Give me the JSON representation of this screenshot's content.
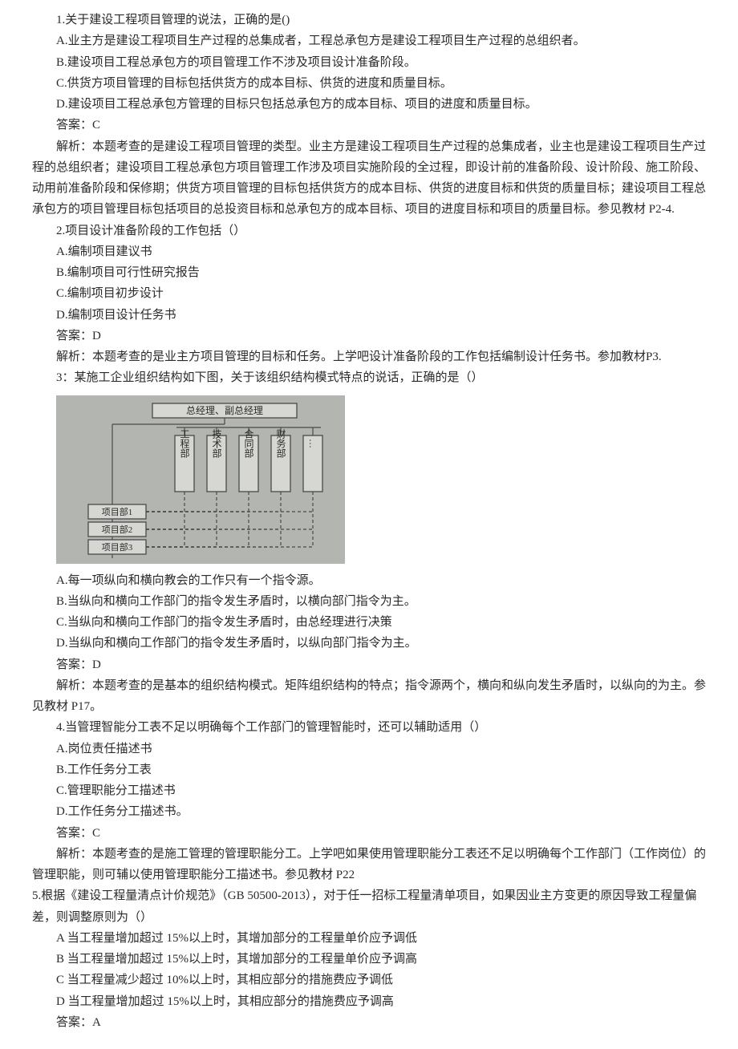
{
  "q1": {
    "stem": "1.关于建设工程项目管理的说法，正确的是()",
    "optA": "A.业主方是建设工程项目生产过程的总集成者，工程总承包方是建设工程项目生产过程的总组织者。",
    "optB": "B.建设项目工程总承包方的项目管理工作不涉及项目设计准备阶段。",
    "optC": "C.供货方项目管理的目标包括供货方的成本目标、供货的进度和质量目标。",
    "optD": "D.建设项目工程总承包方管理的目标只包括总承包方的成本目标、项目的进度和质量目标。",
    "answer": "答案：C",
    "explain1": "解析：本题考查的是建设工程项目管理的类型。业主方是建设工程项目生产过程的总集成者，业主也是建设工程项目生产过程的总组织者；建设项目工程总承包方项目管理工作涉及项目实施阶段的全过程，即设计前的准备阶段、设计阶段、施工阶段、动用前准备阶段和保修期；供货方项目管理的目标包括供货方的成本目标、供货的进度目标和供货的质量目标；建设项目工程总承包方的项目管理目标包括项目的总投资目标和总承包方的成本目标、项目的进度目标和项目的质量目标。参见教材 P2-4."
  },
  "q2": {
    "stem": "2.项目设计准备阶段的工作包括（）",
    "optA": "A.编制项目建议书",
    "optB": "B.编制项目可行性研究报告",
    "optC": "C.编制项目初步设计",
    "optD": "D.编制项目设计任务书",
    "answer": "答案：D",
    "explain1": "解析：本题考查的是业主方项目管理的目标和任务。上学吧设计准备阶段的工作包括编制设计任务书。参加教材P3."
  },
  "q3": {
    "stem": "3：某施工企业组织结构如下图，关于该组织结构模式特点的说话，正确的是（）",
    "diagram": {
      "header": "总经理、副总经理",
      "cols": [
        "工程部",
        "技术部",
        "合同部",
        "财务部",
        "…"
      ],
      "rows": [
        "项目部1",
        "项目部2",
        "项目部3"
      ],
      "bg": "#b3b5b0",
      "box_fill": "#d6d7d2",
      "line": "#4a4a4a",
      "text": "#2a2a2a"
    },
    "optA": "A.每一项纵向和横向教会的工作只有一个指令源。",
    "optB": "B.当纵向和横向工作部门的指令发生矛盾时，以横向部门指令为主。",
    "optC": "C.当纵向和横向工作部门的指令发生矛盾时，由总经理进行决策",
    "optD": "D.当纵向和横向工作部门的指令发生矛盾时，以纵向部门指令为主。",
    "answer": "答案：D",
    "explain1": "解析：本题考查的是基本的组织结构模式。矩阵组织结构的特点；指令源两个，横向和纵向发生矛盾时，以纵向的为主。参见教材 P17。"
  },
  "q4": {
    "stem": "4.当管理智能分工表不足以明确每个工作部门的管理智能时，还可以辅助适用（）",
    "optA": "A.岗位责任描述书",
    "optB": "B.工作任务分工表",
    "optC": "C.管理职能分工描述书",
    "optD": "D.工作任务分工描述书。",
    "answer": "答案：C",
    "explain1": "解析：本题考查的是施工管理的管理职能分工。上学吧如果使用管理职能分工表还不足以明确每个工作部门（工作岗位）的管理职能，则可辅以使用管理职能分工描述书。参见教材 P22"
  },
  "q5": {
    "stem": "5.根据《建设工程量清点计价规范》（GB 50500-2013），对于任一招标工程量清单项目，如果因业主方变更的原因导致工程量偏差，则调整原则为（）",
    "optA": "A 当工程量增加超过 15%以上时，其增加部分的工程量单价应予调低",
    "optB": "B 当工程量增加超过 15%以上时，其增加部分的工程量单价应予调高",
    "optC": "C 当工程量减少超过 10%以上时，其相应部分的措施费应予调低",
    "optD": "D 当工程量增加超过 15%以上时，其相应部分的措施费应予调高",
    "answer": "答案：A"
  }
}
